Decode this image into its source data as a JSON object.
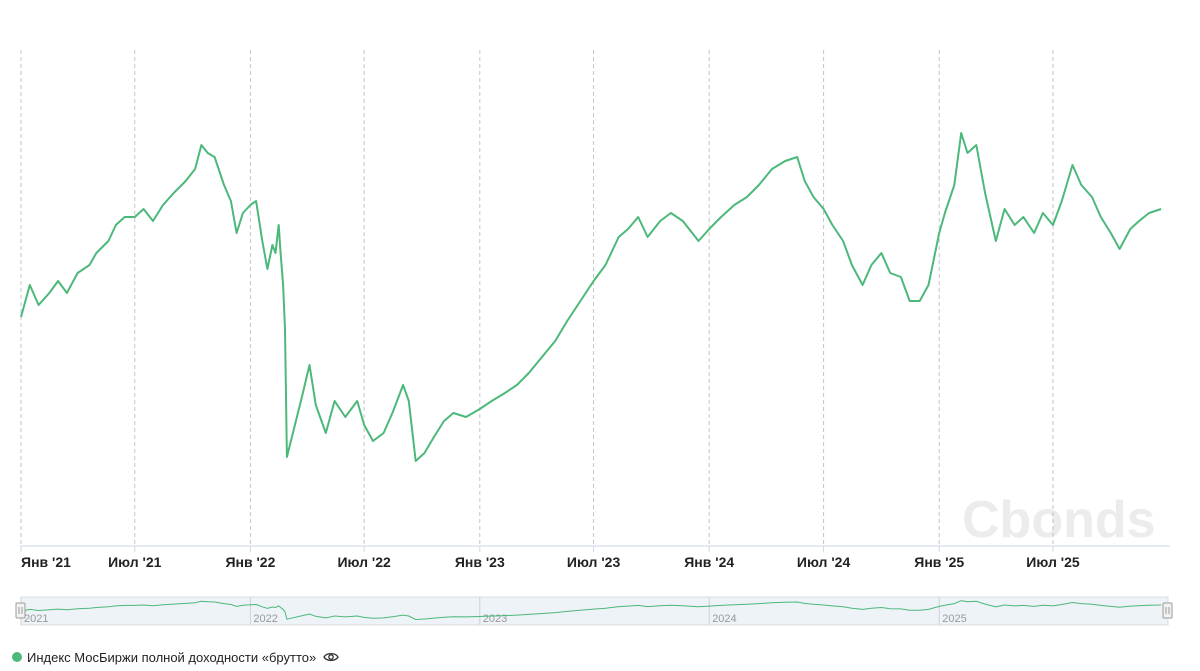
{
  "chart_data": {
    "type": "line",
    "title": "",
    "xlabel": "",
    "ylabel": "",
    "x_range": [
      "2021-01-01",
      "2025-12-31"
    ],
    "x_ticks": [
      {
        "date": "2021-01-01",
        "label": "Янв '21"
      },
      {
        "date": "2021-07-01",
        "label": "Июл '21"
      },
      {
        "date": "2022-01-01",
        "label": "Янв '22"
      },
      {
        "date": "2022-07-01",
        "label": "Июл '22"
      },
      {
        "date": "2023-01-01",
        "label": "Янв '23"
      },
      {
        "date": "2023-07-01",
        "label": "Июл '23"
      },
      {
        "date": "2024-01-01",
        "label": "Янв '24"
      },
      {
        "date": "2024-07-01",
        "label": "Июл '24"
      },
      {
        "date": "2025-01-01",
        "label": "Янв '25"
      },
      {
        "date": "2025-07-01",
        "label": "Июл '25"
      }
    ],
    "y_axis_labels_visible": false,
    "grid": "vertical dashed lines at x ticks",
    "legend_placement": "bottom-left",
    "series": [
      {
        "name": "Индекс МосБиржи полной доходности «брутто»",
        "color": "#4cb87a",
        "points": [
          [
            "2021-01-01",
            0.47
          ],
          [
            "2021-01-15",
            0.55
          ],
          [
            "2021-01-29",
            0.5
          ],
          [
            "2021-02-15",
            0.53
          ],
          [
            "2021-03-01",
            0.56
          ],
          [
            "2021-03-15",
            0.53
          ],
          [
            "2021-04-01",
            0.58
          ],
          [
            "2021-04-20",
            0.6
          ],
          [
            "2021-05-01",
            0.63
          ],
          [
            "2021-05-20",
            0.66
          ],
          [
            "2021-06-01",
            0.7
          ],
          [
            "2021-06-15",
            0.72
          ],
          [
            "2021-07-01",
            0.72
          ],
          [
            "2021-07-15",
            0.74
          ],
          [
            "2021-07-30",
            0.71
          ],
          [
            "2021-08-15",
            0.75
          ],
          [
            "2021-09-01",
            0.78
          ],
          [
            "2021-09-20",
            0.81
          ],
          [
            "2021-10-05",
            0.84
          ],
          [
            "2021-10-15",
            0.9
          ],
          [
            "2021-10-25",
            0.88
          ],
          [
            "2021-11-05",
            0.87
          ],
          [
            "2021-11-20",
            0.8
          ],
          [
            "2021-12-01",
            0.76
          ],
          [
            "2021-12-10",
            0.68
          ],
          [
            "2021-12-20",
            0.73
          ],
          [
            "2022-01-01",
            0.75
          ],
          [
            "2022-01-10",
            0.76
          ],
          [
            "2022-01-20",
            0.66
          ],
          [
            "2022-01-28",
            0.59
          ],
          [
            "2022-02-05",
            0.65
          ],
          [
            "2022-02-10",
            0.63
          ],
          [
            "2022-02-15",
            0.7
          ],
          [
            "2022-02-18",
            0.63
          ],
          [
            "2022-02-22",
            0.55
          ],
          [
            "2022-02-25",
            0.44
          ],
          [
            "2022-02-28",
            0.12
          ],
          [
            "2022-03-24",
            0.27
          ],
          [
            "2022-04-05",
            0.35
          ],
          [
            "2022-04-15",
            0.25
          ],
          [
            "2022-05-01",
            0.18
          ],
          [
            "2022-05-15",
            0.26
          ],
          [
            "2022-06-01",
            0.22
          ],
          [
            "2022-06-20",
            0.26
          ],
          [
            "2022-07-01",
            0.2
          ],
          [
            "2022-07-15",
            0.16
          ],
          [
            "2022-08-01",
            0.18
          ],
          [
            "2022-08-15",
            0.23
          ],
          [
            "2022-09-01",
            0.3
          ],
          [
            "2022-09-10",
            0.26
          ],
          [
            "2022-09-21",
            0.11
          ],
          [
            "2022-10-05",
            0.13
          ],
          [
            "2022-10-20",
            0.17
          ],
          [
            "2022-11-05",
            0.21
          ],
          [
            "2022-11-20",
            0.23
          ],
          [
            "2022-12-10",
            0.22
          ],
          [
            "2023-01-01",
            0.24
          ],
          [
            "2023-01-20",
            0.26
          ],
          [
            "2023-02-10",
            0.28
          ],
          [
            "2023-03-01",
            0.3
          ],
          [
            "2023-03-20",
            0.33
          ],
          [
            "2023-04-10",
            0.37
          ],
          [
            "2023-05-01",
            0.41
          ],
          [
            "2023-05-20",
            0.46
          ],
          [
            "2023-06-10",
            0.51
          ],
          [
            "2023-07-01",
            0.56
          ],
          [
            "2023-07-20",
            0.6
          ],
          [
            "2023-08-10",
            0.67
          ],
          [
            "2023-08-25",
            0.69
          ],
          [
            "2023-09-10",
            0.72
          ],
          [
            "2023-09-25",
            0.67
          ],
          [
            "2023-10-15",
            0.71
          ],
          [
            "2023-11-01",
            0.73
          ],
          [
            "2023-11-20",
            0.71
          ],
          [
            "2023-12-15",
            0.66
          ],
          [
            "2024-01-01",
            0.69
          ],
          [
            "2024-01-20",
            0.72
          ],
          [
            "2024-02-10",
            0.75
          ],
          [
            "2024-03-01",
            0.77
          ],
          [
            "2024-03-20",
            0.8
          ],
          [
            "2024-04-10",
            0.84
          ],
          [
            "2024-05-01",
            0.86
          ],
          [
            "2024-05-20",
            0.87
          ],
          [
            "2024-06-01",
            0.81
          ],
          [
            "2024-06-15",
            0.77
          ],
          [
            "2024-07-01",
            0.74
          ],
          [
            "2024-07-15",
            0.7
          ],
          [
            "2024-08-01",
            0.66
          ],
          [
            "2024-08-15",
            0.6
          ],
          [
            "2024-09-01",
            0.55
          ],
          [
            "2024-09-15",
            0.6
          ],
          [
            "2024-10-01",
            0.63
          ],
          [
            "2024-10-15",
            0.58
          ],
          [
            "2024-11-01",
            0.57
          ],
          [
            "2024-11-15",
            0.51
          ],
          [
            "2024-12-01",
            0.51
          ],
          [
            "2024-12-15",
            0.55
          ],
          [
            "2025-01-01",
            0.68
          ],
          [
            "2025-01-10",
            0.73
          ],
          [
            "2025-01-25",
            0.8
          ],
          [
            "2025-02-05",
            0.93
          ],
          [
            "2025-02-15",
            0.88
          ],
          [
            "2025-03-01",
            0.9
          ],
          [
            "2025-03-15",
            0.78
          ],
          [
            "2025-04-01",
            0.66
          ],
          [
            "2025-04-15",
            0.74
          ],
          [
            "2025-05-01",
            0.7
          ],
          [
            "2025-05-15",
            0.72
          ],
          [
            "2025-06-01",
            0.68
          ],
          [
            "2025-06-15",
            0.73
          ],
          [
            "2025-07-01",
            0.7
          ],
          [
            "2025-07-15",
            0.76
          ],
          [
            "2025-08-01",
            0.85
          ],
          [
            "2025-08-15",
            0.8
          ],
          [
            "2025-09-01",
            0.77
          ],
          [
            "2025-09-15",
            0.72
          ],
          [
            "2025-10-01",
            0.68
          ],
          [
            "2025-10-15",
            0.64
          ],
          [
            "2025-11-01",
            0.69
          ],
          [
            "2025-11-15",
            0.71
          ],
          [
            "2025-12-01",
            0.73
          ],
          [
            "2025-12-20",
            0.74
          ]
        ]
      }
    ],
    "navigator": {
      "labels": [
        {
          "date": "2021-01-01",
          "label": "2021"
        },
        {
          "date": "2022-01-01",
          "label": "2022"
        },
        {
          "date": "2023-01-01",
          "label": "2023"
        },
        {
          "date": "2024-01-01",
          "label": "2024"
        },
        {
          "date": "2025-01-01",
          "label": "2025"
        }
      ]
    }
  },
  "watermark": "Cbonds",
  "legend": {
    "label": "Индекс МосБиржи полной доходности «брутто»",
    "icon": "eye-icon"
  }
}
